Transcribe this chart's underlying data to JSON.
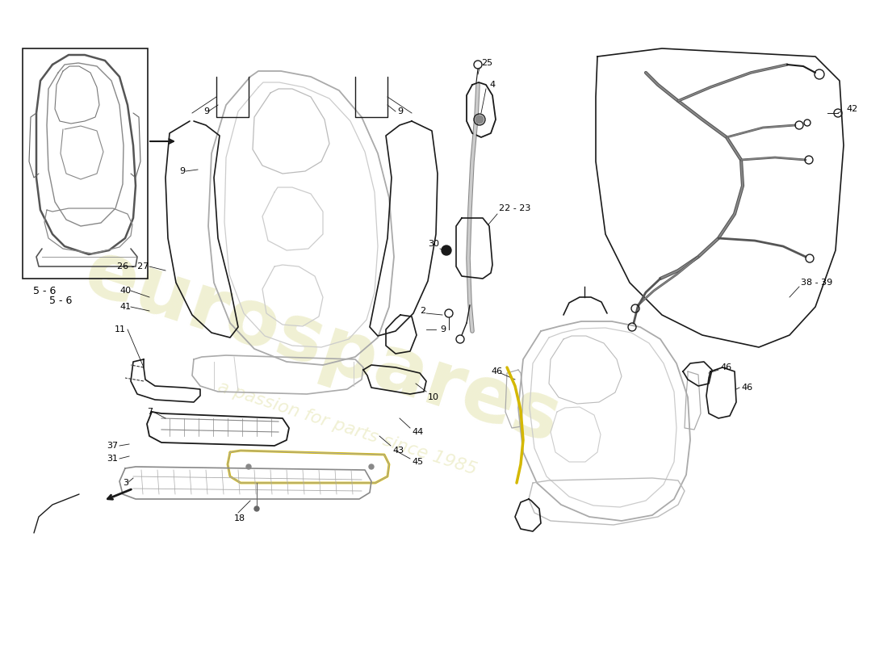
{
  "background_color": "#ffffff",
  "line_color": "#1a1a1a",
  "seat_color": "#cccccc",
  "seat_inner_color": "#dddddd",
  "watermark1": "eurospares",
  "watermark2": "a passion for parts since 1985",
  "wm_color": "#eeeecc",
  "yellow_color": "#d4b800"
}
